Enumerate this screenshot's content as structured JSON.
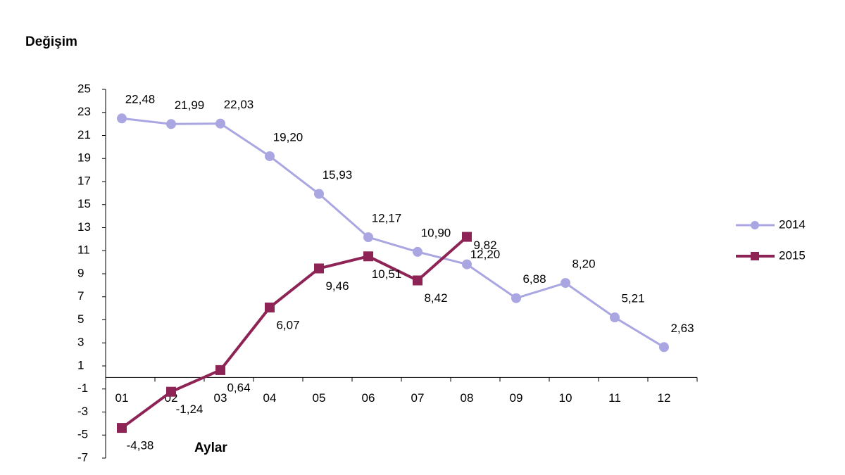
{
  "chart_data": {
    "type": "line",
    "title": "Değişim",
    "x_label": "Aylar",
    "categories": [
      "01",
      "02",
      "03",
      "04",
      "05",
      "06",
      "07",
      "08",
      "09",
      "10",
      "11",
      "12"
    ],
    "series": [
      {
        "name": "2014",
        "color": "#a9a6e2",
        "marker": "circle",
        "values": [
          22.48,
          21.99,
          22.03,
          19.2,
          15.93,
          12.17,
          10.9,
          9.82,
          6.88,
          8.2,
          5.21,
          2.63
        ],
        "value_labels": [
          "22,48",
          "21,99",
          "22,03",
          "19,20",
          "15,93",
          "12,17",
          "10,90",
          "9,82",
          "6,88",
          "8,20",
          "5,21",
          "2,63"
        ]
      },
      {
        "name": "2015",
        "color": "#8e2455",
        "marker": "square",
        "values": [
          -4.38,
          -1.24,
          0.64,
          6.07,
          9.46,
          10.51,
          8.42,
          12.2,
          null,
          null,
          null,
          null
        ],
        "value_labels": [
          "-4,38",
          "-1,24",
          "0,64",
          "6,07",
          "9,46",
          "10,51",
          "8,42",
          "12,20",
          null,
          null,
          null,
          null
        ]
      }
    ],
    "ylim": [
      -7,
      25
    ],
    "yticks": [
      -7,
      -5,
      -3,
      -1,
      1,
      3,
      5,
      7,
      9,
      11,
      13,
      15,
      17,
      19,
      21,
      23,
      25
    ],
    "grid": false,
    "legend": "right"
  }
}
